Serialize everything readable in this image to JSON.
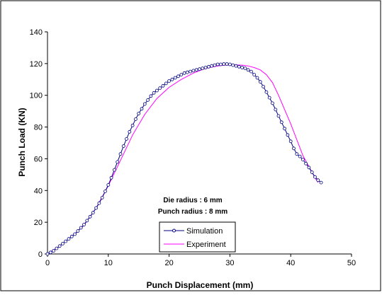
{
  "chart_data": {
    "type": "line",
    "title": "",
    "xlabel": "Punch Displacement (mm)",
    "ylabel": "Punch Load (KN)",
    "xlim": [
      0,
      50
    ],
    "ylim": [
      0,
      140
    ],
    "x_ticks": [
      0,
      10,
      20,
      30,
      40,
      50
    ],
    "y_ticks": [
      0,
      20,
      40,
      60,
      80,
      100,
      120,
      140
    ],
    "grid": false,
    "legend_position": "bottom-center",
    "annotations": [
      "Die radius : 6 mm",
      "Punch radius : 8 mm"
    ],
    "series": [
      {
        "name": "Simulation",
        "color": "#000080",
        "marker": "circle",
        "x": [
          0.0,
          0.5,
          1.0,
          1.5,
          2.0,
          2.5,
          3.0,
          3.5,
          4.0,
          4.5,
          5.0,
          5.5,
          6.0,
          6.5,
          7.0,
          7.5,
          8.0,
          8.5,
          9.0,
          9.5,
          10.0,
          10.5,
          11.0,
          11.5,
          12.0,
          12.5,
          13.0,
          13.5,
          14.0,
          14.5,
          15.0,
          15.5,
          16.0,
          16.5,
          17.0,
          17.5,
          18.0,
          18.5,
          19.0,
          19.5,
          20.0,
          20.5,
          21.0,
          21.5,
          22.0,
          22.5,
          23.0,
          23.5,
          24.0,
          24.5,
          25.0,
          25.5,
          26.0,
          26.5,
          27.0,
          27.5,
          28.0,
          28.5,
          29.0,
          29.5,
          30.0,
          30.5,
          31.0,
          31.5,
          32.0,
          32.5,
          33.0,
          33.5,
          34.0,
          34.5,
          35.0,
          35.5,
          36.0,
          36.5,
          37.0,
          37.5,
          38.0,
          38.5,
          39.0,
          39.5,
          40.0,
          40.5,
          41.0,
          41.5,
          42.0,
          42.5,
          43.0,
          43.5,
          44.0,
          44.5,
          45.0
        ],
        "y": [
          0.0,
          1.0,
          2.0,
          3.5,
          5.0,
          6.5,
          8.0,
          9.5,
          11.0,
          12.5,
          14.5,
          16.5,
          18.5,
          21.0,
          23.5,
          26.0,
          29.0,
          32.0,
          35.5,
          39.5,
          43.5,
          48.0,
          53.0,
          58.0,
          63.0,
          68.0,
          72.5,
          77.0,
          81.0,
          85.0,
          88.5,
          91.5,
          94.5,
          97.0,
          99.5,
          101.5,
          103.0,
          104.5,
          106.0,
          107.5,
          109.0,
          110.0,
          111.0,
          112.0,
          113.0,
          114.0,
          114.5,
          115.0,
          115.5,
          116.0,
          116.5,
          117.0,
          117.5,
          118.0,
          118.5,
          119.0,
          119.5,
          119.5,
          119.7,
          119.7,
          119.5,
          119.0,
          118.5,
          118.0,
          117.5,
          117.0,
          116.0,
          115.0,
          113.0,
          111.0,
          108.5,
          105.5,
          102.0,
          98.5,
          95.0,
          91.0,
          87.0,
          83.0,
          79.0,
          75.0,
          71.0,
          66.5,
          63.0,
          61.5,
          59.5,
          57.0,
          54.5,
          51.5,
          48.5,
          46.5,
          45.0
        ]
      },
      {
        "name": "Experiment",
        "color": "#ff00ff",
        "marker": "none",
        "x": [
          0,
          2,
          4,
          6,
          8,
          10,
          12,
          14,
          16,
          18,
          20,
          22,
          24,
          26,
          28,
          29,
          30,
          31,
          32,
          33,
          34,
          35,
          36,
          37,
          38,
          39,
          40,
          41,
          42,
          43,
          44,
          44.5
        ],
        "y": [
          0,
          5,
          11,
          18,
          29,
          43,
          59,
          75,
          88,
          98,
          105,
          110,
          114,
          117,
          118.5,
          119,
          119.2,
          119.2,
          119,
          118.5,
          117.5,
          116,
          113,
          108,
          100,
          91,
          82,
          72,
          62,
          55,
          48,
          45
        ]
      }
    ]
  }
}
